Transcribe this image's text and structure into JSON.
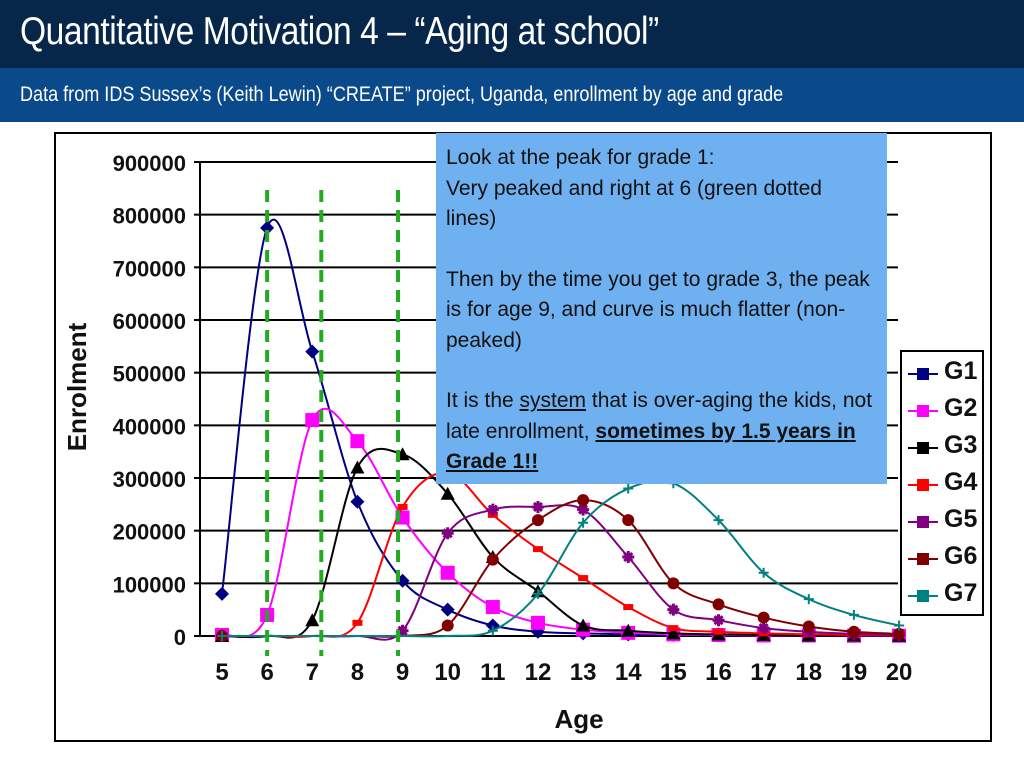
{
  "header": {
    "title": "Quantitative Motivation 4 – “Aging at school”",
    "subtitle": "Data from IDS Sussex’s (Keith Lewin) “CREATE” project, Uganda, enrollment by age and grade"
  },
  "callout": {
    "line1": "Look at the peak for grade 1:",
    "line2": "Very peaked and right at 6 (green dotted lines)",
    "para2": "Then by the time you get to grade 3, the peak is for age 9, and curve is much flatter (non-peaked)",
    "para3_pre": "It is the ",
    "para3_system": "system",
    "para3_mid": " that is over-aging the kids, not late enrollment, ",
    "para3_bold": "sometimes by 1.5 years in Grade 1!!"
  },
  "colors": {
    "G1": "#000080",
    "G2": "#ff00ff",
    "G3": "#000000",
    "G4": "#ff0000",
    "G5": "#800080",
    "G6": "#800000",
    "G7": "#008080",
    "marker_line": "#22aa22"
  },
  "chart_data": {
    "type": "line",
    "title": "",
    "xlabel": "Age",
    "ylabel": "Enrolment",
    "x": [
      5,
      6,
      7,
      8,
      9,
      10,
      11,
      12,
      13,
      14,
      15,
      16,
      17,
      18,
      19,
      20
    ],
    "ylim": [
      0,
      900000
    ],
    "yticks": [
      0,
      100000,
      200000,
      300000,
      400000,
      500000,
      600000,
      700000,
      800000,
      900000
    ],
    "grid": true,
    "legend": "right",
    "series": [
      {
        "name": "G1",
        "marker": "diamond",
        "values": [
          80000,
          775000,
          540000,
          255000,
          105000,
          50000,
          20000,
          8000,
          5000,
          3000,
          2000,
          1000,
          1000,
          500,
          500,
          500
        ]
      },
      {
        "name": "G2",
        "marker": "square",
        "values": [
          2000,
          40000,
          410000,
          370000,
          225000,
          120000,
          55000,
          25000,
          12000,
          6000,
          3000,
          2000,
          1000,
          1000,
          500,
          500
        ]
      },
      {
        "name": "G3",
        "marker": "triangle",
        "values": [
          0,
          0,
          30000,
          320000,
          345000,
          270000,
          150000,
          85000,
          20000,
          10000,
          5000,
          3000,
          2000,
          1000,
          1000,
          500
        ]
      },
      {
        "name": "G4",
        "marker": "dash",
        "values": [
          0,
          0,
          0,
          25000,
          245000,
          310000,
          230000,
          165000,
          110000,
          55000,
          15000,
          8000,
          5000,
          3000,
          2000,
          1000
        ]
      },
      {
        "name": "G5",
        "marker": "star",
        "values": [
          0,
          0,
          0,
          0,
          10000,
          195000,
          240000,
          245000,
          240000,
          150000,
          50000,
          30000,
          15000,
          8000,
          4000,
          2000
        ]
      },
      {
        "name": "G6",
        "marker": "circle",
        "values": [
          0,
          0,
          0,
          0,
          0,
          20000,
          145000,
          220000,
          258000,
          220000,
          100000,
          60000,
          35000,
          18000,
          8000,
          4000
        ]
      },
      {
        "name": "G7",
        "marker": "plus",
        "values": [
          0,
          0,
          0,
          0,
          0,
          0,
          10000,
          80000,
          215000,
          280000,
          290000,
          220000,
          120000,
          70000,
          40000,
          20000
        ]
      }
    ],
    "annotations": [
      {
        "type": "vertical-dashed-line",
        "x": 6,
        "color": "green"
      },
      {
        "type": "vertical-dashed-line",
        "x": 7.2,
        "color": "green"
      },
      {
        "type": "vertical-dashed-line",
        "x": 8.9,
        "color": "green"
      }
    ]
  }
}
